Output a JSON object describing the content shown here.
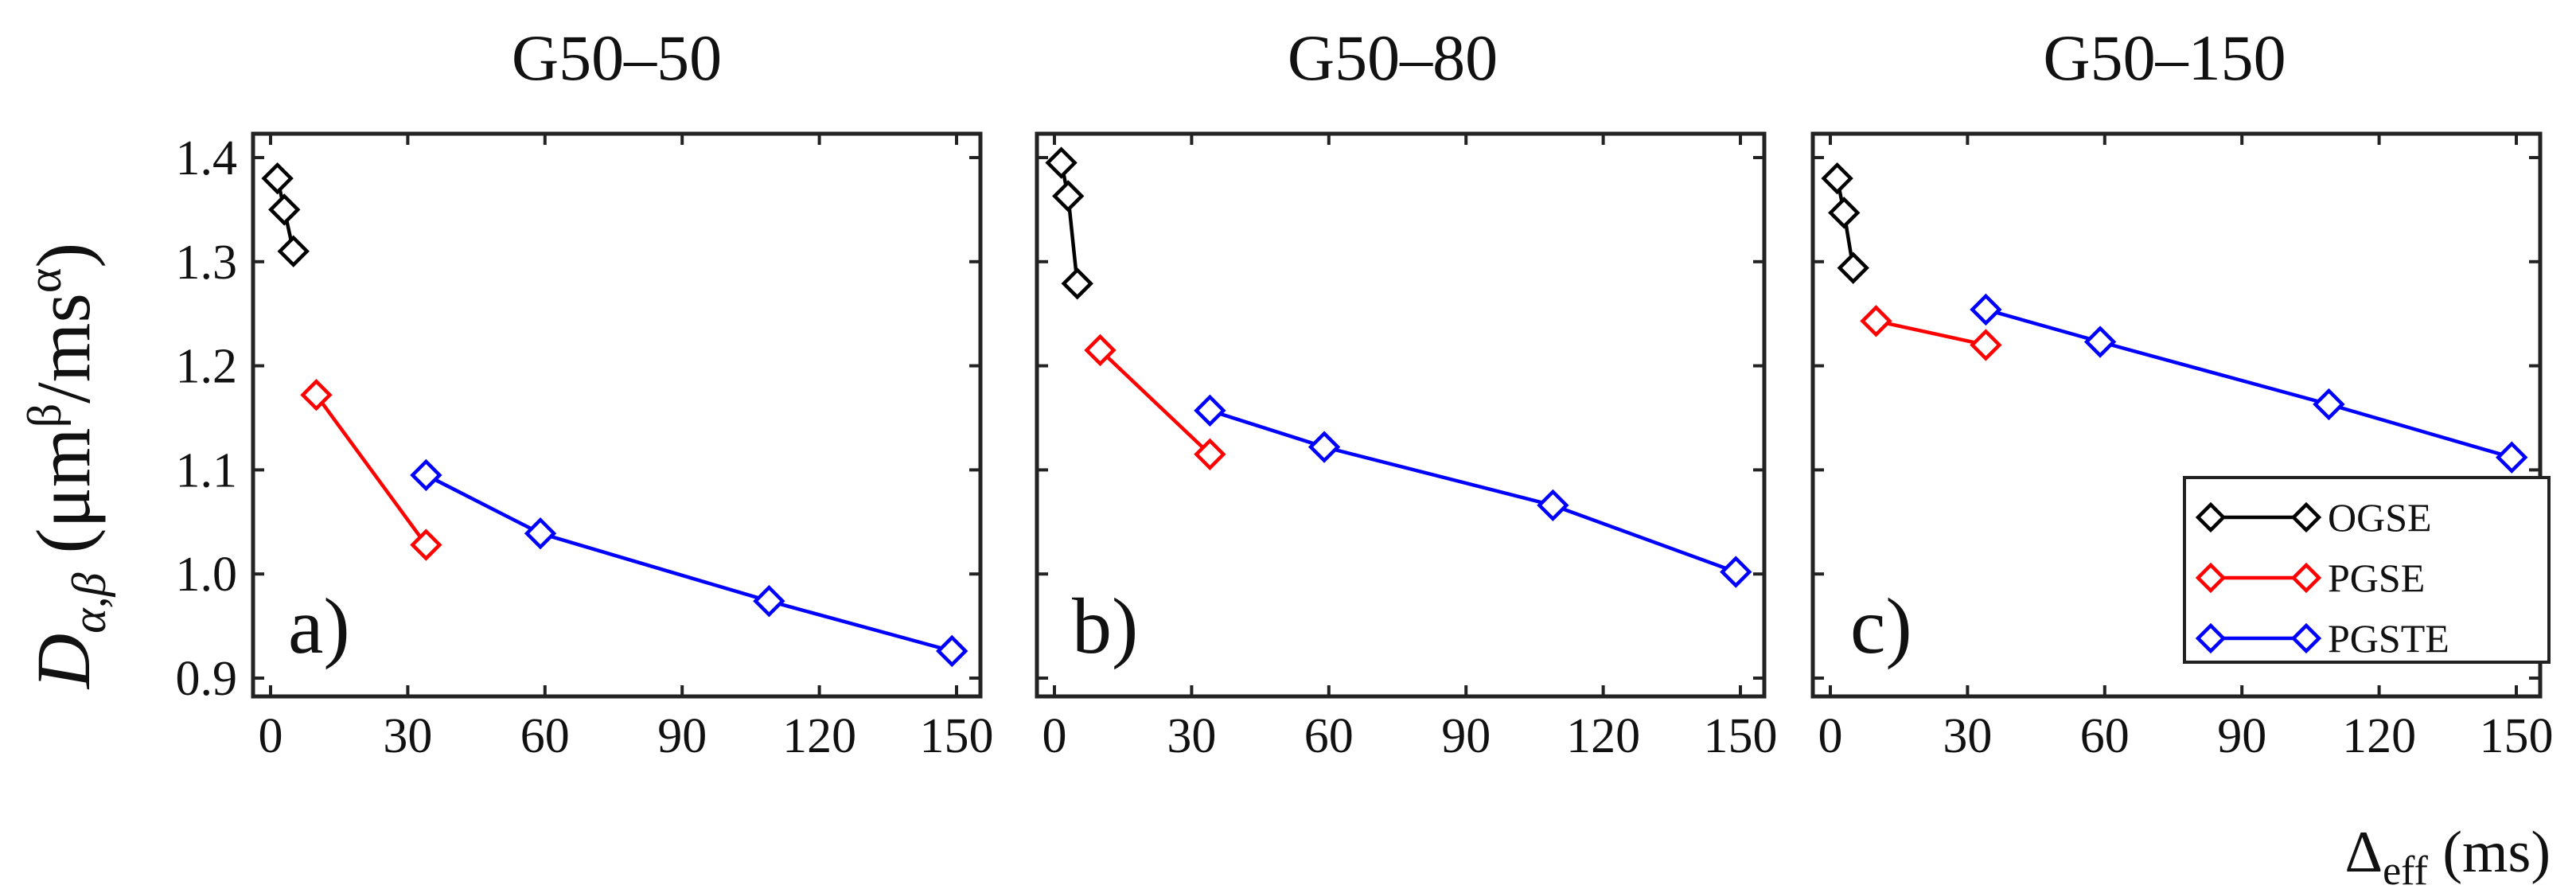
{
  "chart_data": [
    {
      "type": "line",
      "title": "G50–50",
      "panel_label": "a)",
      "xlim": [
        0,
        150
      ],
      "ylim": [
        0.9,
        1.4
      ],
      "xticks": [
        0,
        30,
        60,
        90,
        120,
        150
      ],
      "yticks": [
        0.9,
        1.0,
        1.1,
        1.2,
        1.3,
        1.4
      ],
      "series": [
        {
          "name": "OGSE",
          "x": [
            1.5,
            3,
            5
          ],
          "y": [
            1.38,
            1.35,
            1.31
          ]
        },
        {
          "name": "PGSE",
          "x": [
            10,
            34
          ],
          "y": [
            1.172,
            1.028
          ]
        },
        {
          "name": "PGSTE",
          "x": [
            34,
            59,
            109,
            149
          ],
          "y": [
            1.095,
            1.039,
            0.974,
            0.926
          ]
        }
      ]
    },
    {
      "type": "line",
      "title": "G50–80",
      "panel_label": "b)",
      "xlim": [
        0,
        150
      ],
      "ylim": [
        0.9,
        1.4
      ],
      "xticks": [
        0,
        30,
        60,
        90,
        120,
        150
      ],
      "yticks": [
        0.9,
        1.0,
        1.1,
        1.2,
        1.3,
        1.4
      ],
      "series": [
        {
          "name": "OGSE",
          "x": [
            1.5,
            3,
            5
          ],
          "y": [
            1.395,
            1.363,
            1.279
          ]
        },
        {
          "name": "PGSE",
          "x": [
            10,
            34
          ],
          "y": [
            1.215,
            1.115
          ]
        },
        {
          "name": "PGSTE",
          "x": [
            34,
            59,
            109,
            149
          ],
          "y": [
            1.157,
            1.122,
            1.066,
            1.002
          ]
        }
      ]
    },
    {
      "type": "line",
      "title": "G50–150",
      "panel_label": "c)",
      "xlim": [
        0,
        150
      ],
      "ylim": [
        0.9,
        1.4
      ],
      "xticks": [
        0,
        30,
        60,
        90,
        120,
        150
      ],
      "yticks": [
        0.9,
        1.0,
        1.1,
        1.2,
        1.3,
        1.4
      ],
      "series": [
        {
          "name": "OGSE",
          "x": [
            1.5,
            3,
            5
          ],
          "y": [
            1.38,
            1.347,
            1.294
          ]
        },
        {
          "name": "PGSE",
          "x": [
            10,
            34
          ],
          "y": [
            1.243,
            1.22
          ]
        },
        {
          "name": "PGSTE",
          "x": [
            34,
            59,
            109,
            149
          ],
          "y": [
            1.254,
            1.223,
            1.163,
            1.112
          ]
        }
      ]
    }
  ],
  "axes": {
    "ylabel": {
      "main": "D",
      "sub": "α,β",
      "units_open": " (μm",
      "units_sup1": "β",
      "units_mid": "/ms",
      "units_sup2": "α",
      "units_close": ")"
    },
    "xlabel": {
      "main": "Δ",
      "sub": "eff",
      "units": " (ms)"
    }
  },
  "legend": {
    "position": "bottom-right of panel c",
    "entries": [
      {
        "name": "OGSE",
        "color": "#000000"
      },
      {
        "name": "PGSE",
        "color": "#ff0000"
      },
      {
        "name": "PGSTE",
        "color": "#0000ff"
      }
    ]
  },
  "colors": {
    "OGSE": "#000000",
    "PGSE": "#ff0000",
    "PGSTE": "#0000ff"
  }
}
